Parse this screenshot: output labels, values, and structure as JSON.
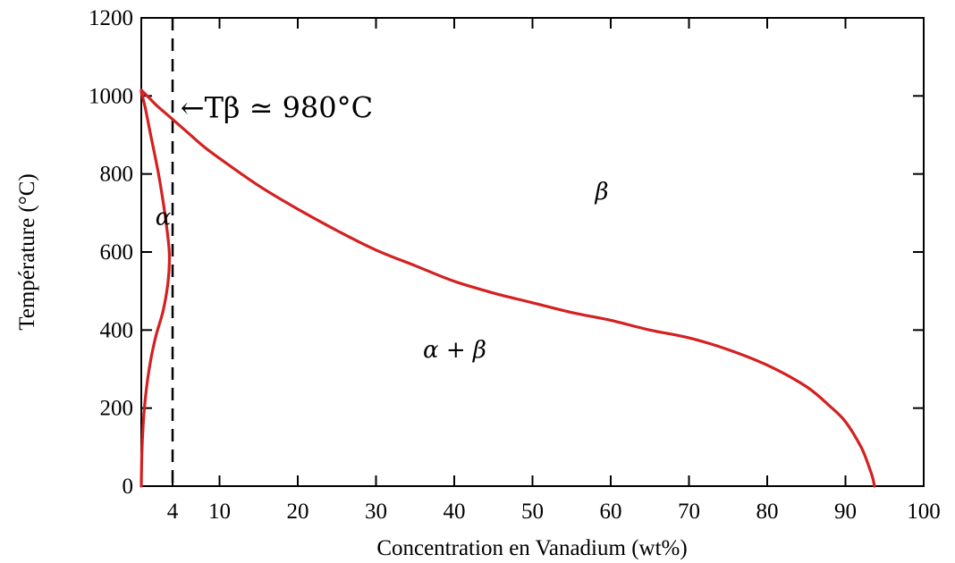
{
  "chart_data": {
    "type": "line",
    "title": "",
    "xlabel": "Concentration en Vanadium (wt%)",
    "ylabel": "Température (°C)",
    "xlim": [
      0,
      100
    ],
    "ylim": [
      0,
      1200
    ],
    "xticks": [
      4,
      10,
      20,
      30,
      40,
      50,
      60,
      70,
      80,
      90,
      100
    ],
    "yticks": [
      0,
      200,
      400,
      600,
      800,
      1000,
      1200
    ],
    "grid": false,
    "legend": "none",
    "line_color": "#d42020",
    "series": [
      {
        "x": [
          0,
          1,
          2,
          4,
          6,
          8,
          10,
          15,
          20,
          25,
          30,
          35,
          40,
          45,
          50,
          55,
          60,
          65,
          70,
          75,
          80,
          85,
          88,
          90,
          92,
          93,
          93.5,
          93.7
        ],
        "y": [
          1015,
          995,
          975,
          940,
          905,
          870,
          840,
          770,
          710,
          655,
          605,
          565,
          525,
          495,
          470,
          445,
          425,
          400,
          380,
          350,
          310,
          255,
          205,
          165,
          100,
          50,
          20,
          0
        ]
      },
      {
        "x": [
          0,
          0.5,
          1.2,
          2.2,
          3.0,
          3.5,
          3.6,
          3.4,
          2.8,
          1.8,
          1.0,
          0.4,
          0.1,
          0
        ],
        "y": [
          1010,
          970,
          900,
          800,
          700,
          620,
          580,
          520,
          450,
          380,
          300,
          200,
          100,
          0
        ]
      }
    ],
    "vlines": [
      {
        "x": 4,
        "style": "dashed"
      }
    ],
    "annotations": [
      {
        "text": "α",
        "x": 1.8,
        "y": 670
      },
      {
        "text": "β",
        "x": 58,
        "y": 735
      },
      {
        "text": "α + β",
        "x": 36,
        "y": 330
      },
      {
        "text": "←Tβ ≃ 980°C",
        "x": 5,
        "y": 945
      }
    ]
  }
}
